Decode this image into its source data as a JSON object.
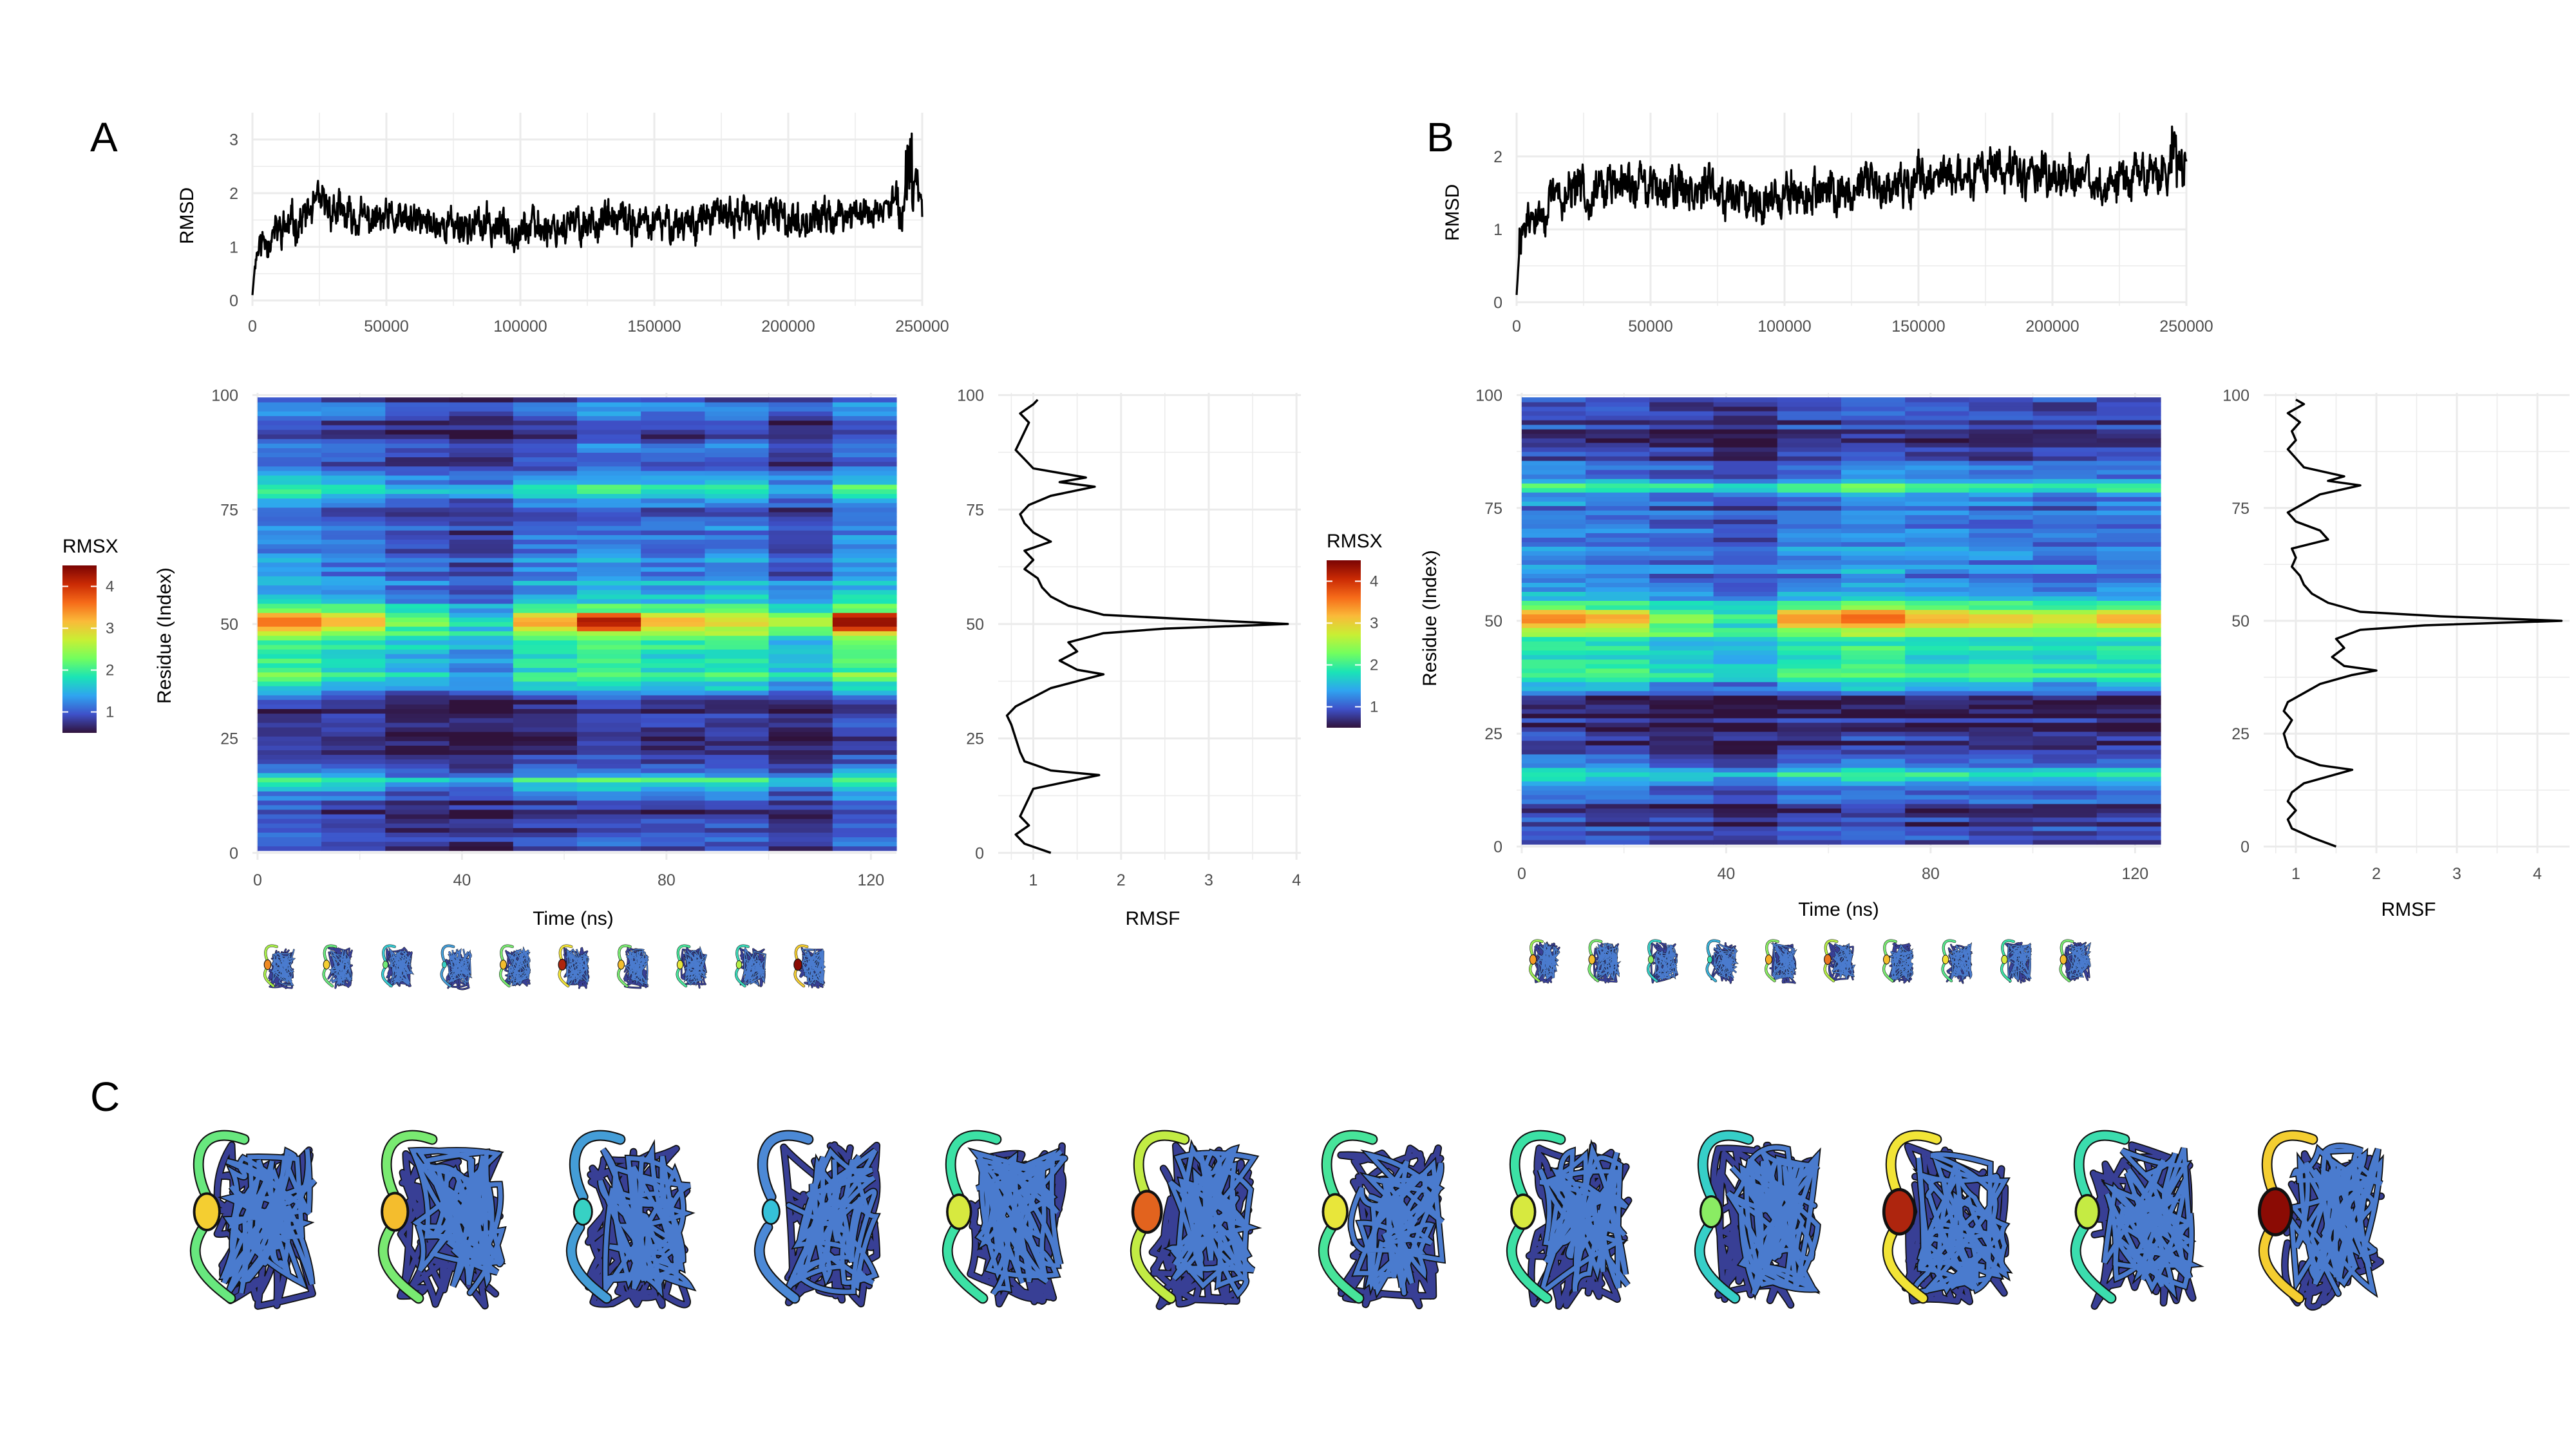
{
  "panel_labels": [
    "A",
    "B",
    "C"
  ],
  "colors": {
    "line": "#000000",
    "grid": "#ebebeb",
    "turbo_stops": [
      "#30123b",
      "#3e51c9",
      "#2fa4f0",
      "#1ae4b6",
      "#72fe5e",
      "#c8ef34",
      "#faba39",
      "#f66b19",
      "#ca2a04",
      "#7a0403"
    ],
    "tube_stops": [
      "#2a1550",
      "#3e4fb0",
      "#4d86d6",
      "#33c6d9",
      "#3de3a2",
      "#a7f04b",
      "#f3e437",
      "#f59a24",
      "#d8451b",
      "#8b0b04"
    ]
  },
  "icons": {
    "structure_thumbnail": "protein-ribbon-icon",
    "structure_large": "protein-backbone-icon"
  },
  "chart_data": [
    {
      "id": "A_rmsd",
      "type": "line",
      "xlabel": "",
      "ylabel": "RMSD",
      "xlim": [
        0,
        250000
      ],
      "ylim": [
        0,
        3.5
      ],
      "x_ticks": [
        0,
        50000,
        100000,
        150000,
        200000,
        250000
      ],
      "y_ticks": [
        0,
        1,
        2,
        3
      ],
      "trend": {
        "x": [
          0,
          1000,
          2000,
          5000,
          10000,
          18000,
          25000,
          28000,
          35000,
          45000,
          60000,
          80000,
          100000,
          120000,
          130000,
          140000,
          150000,
          165000,
          180000,
          195000,
          205000,
          215000,
          225000,
          235000,
          242000,
          246000,
          248000,
          250000
        ],
        "y": [
          0.1,
          0.7,
          1.0,
          1.15,
          1.3,
          1.5,
          1.8,
          1.75,
          1.55,
          1.5,
          1.45,
          1.4,
          1.35,
          1.4,
          1.5,
          1.45,
          1.4,
          1.5,
          1.6,
          1.55,
          1.5,
          1.55,
          1.6,
          1.7,
          1.8,
          2.0,
          2.2,
          1.8
        ]
      },
      "noise_amplitude": 0.28
    },
    {
      "id": "B_rmsd",
      "type": "line",
      "xlabel": "",
      "ylabel": "RMSD",
      "xlim": [
        0,
        250000
      ],
      "ylim": [
        0,
        2.6
      ],
      "x_ticks": [
        0,
        50000,
        100000,
        150000,
        200000,
        250000
      ],
      "y_ticks": [
        0,
        1,
        2
      ],
      "trend": {
        "x": [
          0,
          1000,
          2000,
          5000,
          10000,
          15000,
          20000,
          30000,
          40000,
          60000,
          80000,
          100000,
          120000,
          135000,
          150000,
          165000,
          180000,
          200000,
          220000,
          240000,
          248000,
          250000
        ],
        "y": [
          0.1,
          0.7,
          1.0,
          1.1,
          1.2,
          1.45,
          1.5,
          1.55,
          1.6,
          1.6,
          1.5,
          1.45,
          1.5,
          1.6,
          1.7,
          1.75,
          1.8,
          1.7,
          1.65,
          1.75,
          1.9,
          1.7
        ]
      },
      "noise_amplitude": 0.25
    },
    {
      "id": "A_rmsx",
      "type": "heatmap",
      "xlabel": "Time (ns)",
      "ylabel": "Residue (Index)",
      "xlim": [
        0,
        125
      ],
      "ylim": [
        0,
        100
      ],
      "x_ticks": [
        0,
        40,
        80,
        120
      ],
      "y_ticks": [
        0,
        25,
        50,
        75,
        100
      ],
      "time_bins": [
        0,
        12.5,
        25,
        37.5,
        50,
        62.5,
        75,
        87.5,
        100,
        112.5,
        125
      ],
      "legend_title": "RMSX",
      "legend_ticks": [
        1,
        2,
        3,
        4
      ],
      "legend_range": [
        0.5,
        4.5
      ],
      "base_profile": {
        "residue": [
          0,
          5,
          10,
          13,
          16,
          18,
          20,
          25,
          30,
          33,
          36,
          39,
          42,
          45,
          48,
          50,
          52,
          55,
          60,
          65,
          70,
          75,
          78,
          80,
          82,
          85,
          90,
          95,
          100
        ],
        "rmsx": [
          1.0,
          0.8,
          0.9,
          1.1,
          1.8,
          1.2,
          0.9,
          0.7,
          0.6,
          0.8,
          1.6,
          2.0,
          1.8,
          1.8,
          2.4,
          3.0,
          2.5,
          1.5,
          1.3,
          1.2,
          1.1,
          1.0,
          1.4,
          1.9,
          1.3,
          1.0,
          0.9,
          1.0,
          1.0
        ]
      },
      "bin_scale": [
        1.1,
        1.0,
        0.85,
        0.75,
        1.0,
        1.1,
        1.0,
        1.05,
        0.85,
        1.15
      ],
      "peak_values": [
        3.7,
        3.3,
        2.5,
        2.0,
        3.4,
        4.3,
        3.4,
        3.1,
        2.8,
        4.5
      ]
    },
    {
      "id": "B_rmsx",
      "type": "heatmap",
      "xlabel": "Time (ns)",
      "ylabel": "Residue (Index)",
      "xlim": [
        0,
        125
      ],
      "ylim": [
        0,
        100
      ],
      "x_ticks": [
        0,
        40,
        80,
        120
      ],
      "y_ticks": [
        0,
        25,
        50,
        75,
        100
      ],
      "time_bins": [
        0,
        12.5,
        25,
        37.5,
        50,
        62.5,
        75,
        87.5,
        100,
        112.5,
        125
      ],
      "legend_title": "RMSX",
      "legend_ticks": [
        1,
        2,
        3,
        4
      ],
      "legend_range": [
        0.5,
        4.5
      ],
      "base_profile": {
        "residue": [
          0,
          5,
          10,
          13,
          16,
          18,
          20,
          25,
          30,
          33,
          36,
          39,
          42,
          45,
          48,
          50,
          52,
          55,
          60,
          65,
          70,
          75,
          78,
          80,
          82,
          85,
          90,
          95,
          100
        ],
        "rmsx": [
          1.0,
          0.8,
          0.9,
          1.1,
          1.8,
          1.2,
          0.9,
          0.7,
          0.6,
          0.8,
          1.6,
          2.1,
          1.8,
          1.8,
          2.4,
          3.0,
          2.5,
          1.5,
          1.3,
          1.2,
          1.1,
          1.0,
          1.4,
          2.0,
          1.3,
          1.0,
          0.7,
          0.9,
          1.0
        ]
      },
      "bin_scale": [
        1.05,
        1.0,
        0.9,
        0.8,
        1.0,
        1.1,
        1.0,
        1.0,
        0.95,
        1.0
      ],
      "peak_values": [
        3.6,
        3.4,
        2.6,
        2.2,
        3.5,
        3.8,
        3.4,
        3.2,
        3.0,
        3.4
      ]
    },
    {
      "id": "A_rmsf",
      "type": "line",
      "xlabel": "RMSF",
      "ylabel": "",
      "xlim": [
        0.6,
        4.05
      ],
      "ylim": [
        0,
        100
      ],
      "x_ticks": [
        1,
        2,
        3,
        4
      ],
      "y_ticks": [
        0,
        25,
        50,
        75,
        100
      ],
      "residue": [
        0,
        2,
        4,
        6,
        8,
        10,
        12,
        14,
        16,
        17,
        18,
        20,
        22,
        25,
        28,
        30,
        32,
        34,
        36,
        38,
        39,
        40,
        42,
        44,
        46,
        48,
        49,
        50,
        51,
        52,
        54,
        56,
        58,
        60,
        62,
        64,
        66,
        68,
        70,
        72,
        74,
        76,
        78,
        80,
        81,
        82,
        84,
        86,
        88,
        90,
        92,
        94,
        96,
        98,
        99
      ],
      "rmsf": [
        1.2,
        0.9,
        0.8,
        0.95,
        0.85,
        0.9,
        0.95,
        1.0,
        1.5,
        1.75,
        1.2,
        0.9,
        0.85,
        0.8,
        0.75,
        0.7,
        0.8,
        1.0,
        1.2,
        1.6,
        1.8,
        1.5,
        1.3,
        1.5,
        1.4,
        1.8,
        2.5,
        3.9,
        2.8,
        1.8,
        1.4,
        1.2,
        1.1,
        1.05,
        0.9,
        1.0,
        0.9,
        1.2,
        1.0,
        0.9,
        0.85,
        0.95,
        1.2,
        1.7,
        1.3,
        1.6,
        1.0,
        0.9,
        0.8,
        0.85,
        0.9,
        0.95,
        0.85,
        1.0,
        1.05
      ]
    },
    {
      "id": "B_rmsf",
      "type": "line",
      "xlabel": "RMSF",
      "ylabel": "",
      "xlim": [
        0.6,
        4.4
      ],
      "ylim": [
        0,
        100
      ],
      "x_ticks": [
        1,
        2,
        3,
        4
      ],
      "y_ticks": [
        0,
        25,
        50,
        75,
        100
      ],
      "residue": [
        0,
        2,
        4,
        6,
        8,
        10,
        12,
        14,
        16,
        17,
        18,
        20,
        22,
        25,
        28,
        30,
        32,
        34,
        36,
        38,
        39,
        40,
        42,
        44,
        46,
        48,
        49,
        50,
        51,
        52,
        54,
        56,
        58,
        60,
        62,
        64,
        66,
        68,
        70,
        72,
        74,
        76,
        78,
        80,
        81,
        82,
        84,
        86,
        88,
        90,
        92,
        94,
        96,
        98,
        99
      ],
      "rmsf": [
        1.5,
        1.2,
        0.95,
        0.9,
        1.0,
        0.9,
        0.95,
        1.1,
        1.5,
        1.7,
        1.3,
        1.0,
        0.9,
        0.85,
        0.95,
        0.85,
        0.9,
        1.1,
        1.3,
        1.7,
        2.0,
        1.6,
        1.45,
        1.6,
        1.5,
        1.8,
        2.6,
        4.3,
        2.8,
        1.8,
        1.4,
        1.2,
        1.1,
        1.05,
        0.95,
        1.0,
        0.95,
        1.4,
        1.3,
        1.0,
        0.9,
        1.1,
        1.3,
        1.8,
        1.4,
        1.6,
        1.1,
        1.0,
        0.9,
        1.0,
        0.95,
        1.05,
        0.9,
        1.1,
        1.0
      ]
    }
  ],
  "panel_c": {
    "frames": 12,
    "hotspot_values": [
      3.3,
      3.4,
      2.0,
      1.8,
      3.0,
      3.9,
      3.1,
      3.0,
      2.6,
      4.3,
      2.9,
      4.5
    ]
  }
}
